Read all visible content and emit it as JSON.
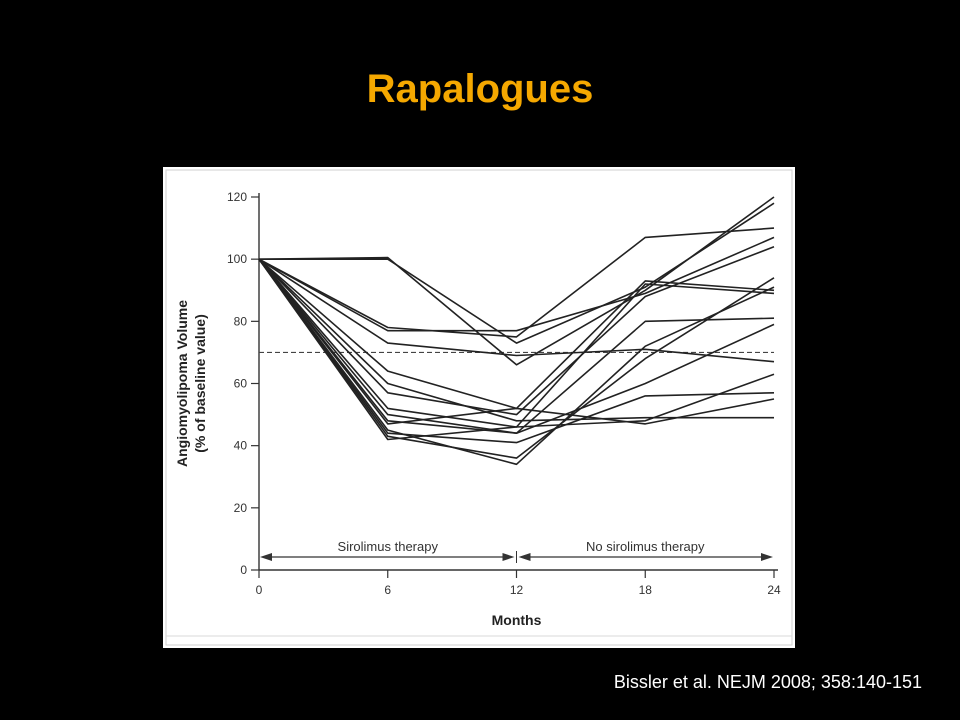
{
  "slide": {
    "title": "Rapalogues",
    "citation": "Bissler et al. NEJM 2008; 358:140-151",
    "title_color": "#f5a800",
    "background_color": "#000000"
  },
  "chart_data": {
    "type": "line",
    "title": "",
    "xlabel": "Months",
    "ylabel": "Angiomyolipoma Volume",
    "ylabel_sub": "(% of baseline value)",
    "x": [
      0,
      6,
      12,
      18,
      24
    ],
    "xlim": [
      0,
      24
    ],
    "ylim": [
      0,
      120
    ],
    "x_ticks": [
      "0",
      "6",
      "12",
      "18",
      "24"
    ],
    "y_ticks": [
      "0",
      "20",
      "40",
      "60",
      "80",
      "100",
      "120"
    ],
    "reference_line": {
      "y": 70,
      "style": "dashed"
    },
    "phases": [
      {
        "label": "Sirolimus therapy",
        "from": 0,
        "to": 12
      },
      {
        "label": "No sirolimus therapy",
        "from": 12,
        "to": 24
      }
    ],
    "line_color": "#222222",
    "grid": false,
    "series": [
      {
        "values": [
          100,
          100.5,
          66,
          90,
          120
        ]
      },
      {
        "values": [
          100,
          100,
          73,
          91,
          118
        ]
      },
      {
        "values": [
          100,
          78,
          75,
          107,
          110
        ]
      },
      {
        "values": [
          100,
          77,
          77,
          89,
          107
        ]
      },
      {
        "values": [
          100,
          73,
          69,
          71,
          67
        ]
      },
      {
        "values": [
          100,
          64,
          52,
          93,
          90
        ]
      },
      {
        "values": [
          100,
          57,
          50,
          88,
          104
        ]
      },
      {
        "values": [
          100,
          52,
          46,
          92,
          89
        ]
      },
      {
        "values": [
          100,
          50,
          44,
          80,
          81
        ]
      },
      {
        "values": [
          100,
          48,
          44,
          60,
          79
        ]
      },
      {
        "values": [
          100,
          44,
          41,
          56,
          57
        ]
      },
      {
        "values": [
          100,
          43,
          36,
          68,
          94
        ]
      },
      {
        "values": [
          100,
          45,
          34,
          72,
          91
        ]
      },
      {
        "values": [
          100,
          42,
          46,
          48,
          63
        ]
      },
      {
        "values": [
          100,
          47,
          52,
          47,
          55
        ]
      },
      {
        "values": [
          100,
          60,
          48,
          49,
          49
        ]
      }
    ]
  }
}
